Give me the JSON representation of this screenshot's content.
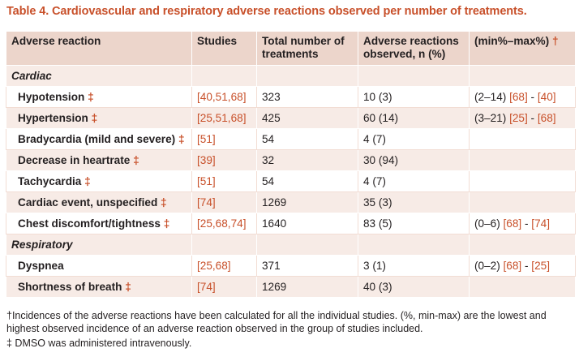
{
  "caption": "Table 4. Cardiovascular and respiratory adverse reactions observed per number of treatments.",
  "headers": {
    "adverse_reaction": "Adverse reaction",
    "studies": "Studies",
    "total": "Total number of treatments",
    "observed": "Adverse reactions observed, n (%)",
    "minmax": "(min%–max%)",
    "minmax_mark": "†"
  },
  "sections": {
    "cardiac": "Cardiac",
    "respiratory": "Respiratory"
  },
  "rows": [
    {
      "name": "Hypotension",
      "mark": "‡",
      "studies": "[40,51,68]",
      "total": "323",
      "observed": "10 (3)",
      "range": "(2–14)",
      "ref_a": "[68]",
      "sep": " - ",
      "ref_b": "[40]"
    },
    {
      "name": "Hypertension",
      "mark": "‡",
      "studies": "[25,51,68]",
      "total": "425",
      "observed": "60 (14)",
      "range": "(3–21)",
      "ref_a": "[25]",
      "sep": " - ",
      "ref_b": "[68]"
    },
    {
      "name": "Bradycardia (mild and severe)",
      "mark": "‡",
      "studies": "[51]",
      "total": "54",
      "observed": "4 (7)",
      "range": "",
      "ref_a": "",
      "sep": "",
      "ref_b": ""
    },
    {
      "name": "Decrease in heartrate",
      "mark": "‡",
      "studies": "[39]",
      "total": "32",
      "observed": "30 (94)",
      "range": "",
      "ref_a": "",
      "sep": "",
      "ref_b": ""
    },
    {
      "name": "Tachycardia",
      "mark": "‡",
      "studies": "[51]",
      "total": "54",
      "observed": "4 (7)",
      "range": "",
      "ref_a": "",
      "sep": "",
      "ref_b": ""
    },
    {
      "name": "Cardiac event, unspecified",
      "mark": "‡",
      "studies": "[74]",
      "total": "1269",
      "observed": "35 (3)",
      "range": "",
      "ref_a": "",
      "sep": "",
      "ref_b": ""
    },
    {
      "name": "Chest discomfort/tightness",
      "mark": "‡",
      "studies": "[25,68,74]",
      "total": "1640",
      "observed": "83 (5)",
      "range": "(0–6)",
      "ref_a": "[68]",
      "sep": " - ",
      "ref_b": "[74]"
    },
    {
      "name": "Dyspnea",
      "mark": "",
      "studies": "[25,68]",
      "total": "371",
      "observed": "3 (1)",
      "range": "(0–2)",
      "ref_a": "[68]",
      "sep": " - ",
      "ref_b": "[25]"
    },
    {
      "name": "Shortness of breath",
      "mark": "‡",
      "studies": "[74]",
      "total": "1269",
      "observed": "40 (3)",
      "range": "",
      "ref_a": "",
      "sep": "",
      "ref_b": ""
    }
  ],
  "footnotes": {
    "dagger": "†Incidences of the adverse reactions have been calculated for all the individual studies. (%, min-max) are the lowest and highest observed incidence of an adverse reaction observed in the group of studies included.",
    "double_dagger": "‡ DMSO was administered intravenously."
  }
}
